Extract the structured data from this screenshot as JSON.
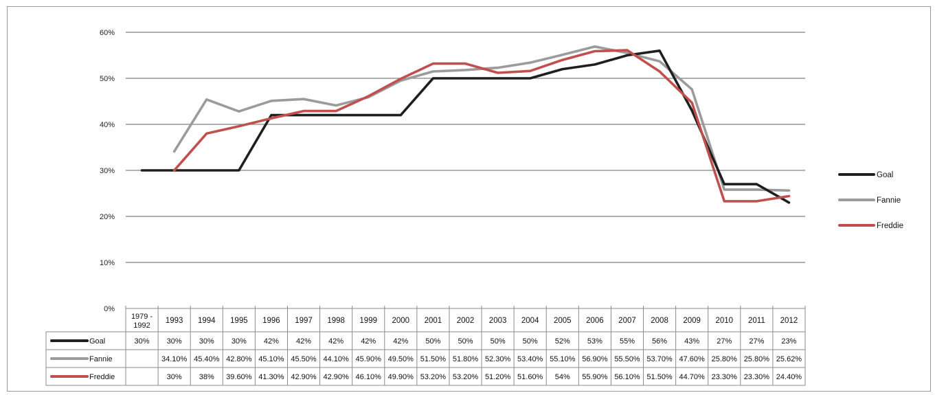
{
  "chart_data": {
    "type": "line",
    "categories": [
      "1979 - 1992",
      "1993",
      "1994",
      "1995",
      "1996",
      "1997",
      "1998",
      "1999",
      "2000",
      "2001",
      "2002",
      "2003",
      "2004",
      "2005",
      "2006",
      "2007",
      "2008",
      "2009",
      "2010",
      "2011",
      "2012"
    ],
    "y_ticks": [
      "0%",
      "10%",
      "20%",
      "30%",
      "40%",
      "50%",
      "60%"
    ],
    "ylim": [
      0,
      60
    ],
    "grid": true,
    "legend_position": "right",
    "series": [
      {
        "name": "Goal",
        "color": "#1f1f1f",
        "values": [
          30,
          30,
          30,
          30,
          42,
          42,
          42,
          42,
          42,
          50,
          50,
          50,
          50,
          52,
          53,
          55,
          56,
          43,
          27,
          27,
          23
        ],
        "labels": [
          "30%",
          "30%",
          "30%",
          "30%",
          "42%",
          "42%",
          "42%",
          "42%",
          "42%",
          "50%",
          "50%",
          "50%",
          "50%",
          "52%",
          "53%",
          "55%",
          "56%",
          "43%",
          "27%",
          "27%",
          "23%"
        ]
      },
      {
        "name": "Fannie",
        "color": "#9b9b9b",
        "values": [
          null,
          34.1,
          45.4,
          42.8,
          45.1,
          45.5,
          44.1,
          45.9,
          49.5,
          51.5,
          51.8,
          52.3,
          53.4,
          55.1,
          56.9,
          55.5,
          53.7,
          47.6,
          25.8,
          25.8,
          25.62
        ],
        "labels": [
          "",
          "34.10%",
          "45.40%",
          "42.80%",
          "45.10%",
          "45.50%",
          "44.10%",
          "45.90%",
          "49.50%",
          "51.50%",
          "51.80%",
          "52.30%",
          "53.40%",
          "55.10%",
          "56.90%",
          "55.50%",
          "53.70%",
          "47.60%",
          "25.80%",
          "25.80%",
          "25.62%"
        ]
      },
      {
        "name": "Freddie",
        "color": "#c0504d",
        "values": [
          null,
          30,
          38,
          39.6,
          41.3,
          42.9,
          42.9,
          46.1,
          49.9,
          53.2,
          53.2,
          51.2,
          51.6,
          54,
          55.9,
          56.1,
          51.5,
          44.7,
          23.3,
          23.3,
          24.4
        ],
        "labels": [
          "",
          "30%",
          "38%",
          "39.60%",
          "41.30%",
          "42.90%",
          "42.90%",
          "46.10%",
          "49.90%",
          "53.20%",
          "53.20%",
          "51.20%",
          "51.60%",
          "54%",
          "55.90%",
          "56.10%",
          "51.50%",
          "44.70%",
          "23.30%",
          "23.30%",
          "24.40%"
        ]
      }
    ]
  }
}
